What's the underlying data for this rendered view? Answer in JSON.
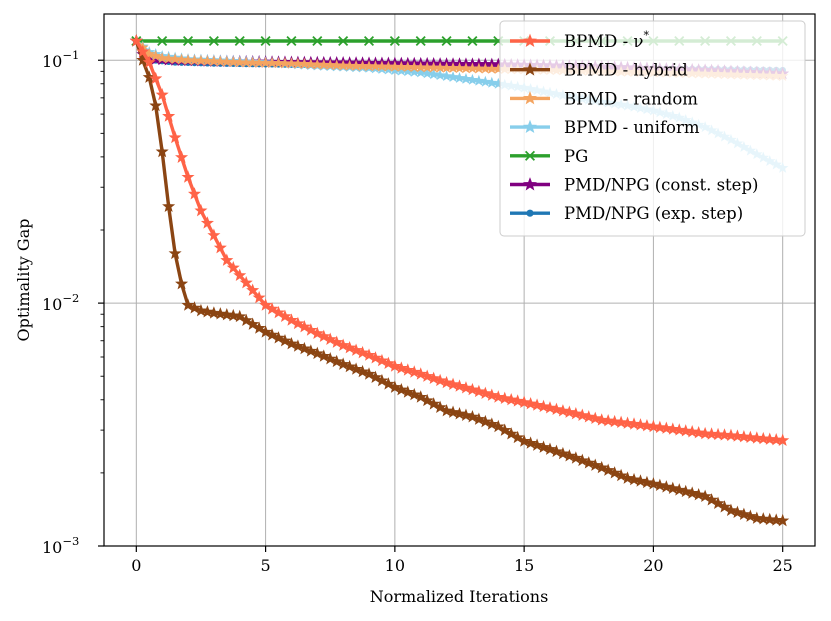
{
  "chart_data": {
    "type": "line",
    "title": "",
    "xlabel": "Normalized Iterations",
    "ylabel": "Optimality Gap",
    "xlim": [
      -1.25,
      26.25
    ],
    "ylim": [
      0.001,
      0.155
    ],
    "yscale": "log",
    "grid": true,
    "legend_position": "top-right",
    "x_ticks": [
      0,
      5,
      10,
      15,
      20,
      25
    ],
    "x_tick_labels": [
      "0",
      "5",
      "10",
      "15",
      "20",
      "25"
    ],
    "y_ticks": [
      0.1,
      0.01,
      0.001
    ],
    "y_tick_labels": [
      {
        "base": "10",
        "exp": "−1"
      },
      {
        "base": "10",
        "exp": "−2"
      },
      {
        "base": "10",
        "exp": "−3"
      }
    ],
    "series": [
      {
        "name": "PMD/NPG (exp. step)",
        "color": "#1f77b4",
        "marker": "dot",
        "points": [
          [
            0,
            0.12
          ],
          [
            0.3,
            0.102
          ],
          [
            0.7,
            0.1
          ],
          [
            1.5,
            0.098
          ],
          [
            3,
            0.097
          ],
          [
            6,
            0.096
          ],
          [
            10,
            0.095
          ],
          [
            14,
            0.094
          ],
          [
            18,
            0.093
          ],
          [
            22,
            0.092
          ],
          [
            25,
            0.091
          ]
        ]
      },
      {
        "name": "PMD/NPG (const. step)",
        "color": "#800080",
        "marker": "star",
        "points": [
          [
            0,
            0.12
          ],
          [
            0.3,
            0.103
          ],
          [
            0.7,
            0.101
          ],
          [
            1.5,
            0.1
          ],
          [
            3,
            0.099
          ],
          [
            6,
            0.098
          ],
          [
            10,
            0.097
          ],
          [
            14,
            0.096
          ],
          [
            18,
            0.094
          ],
          [
            22,
            0.091
          ],
          [
            25,
            0.088
          ]
        ]
      },
      {
        "name": "PG",
        "color": "#2ca02c",
        "marker": "x",
        "points": [
          [
            0,
            0.12
          ],
          [
            25,
            0.12
          ]
        ]
      },
      {
        "name": "BPMD - uniform",
        "color": "#87ceeb",
        "marker": "star",
        "points": [
          [
            0,
            0.12
          ],
          [
            0.5,
            0.108
          ],
          [
            1,
            0.104
          ],
          [
            2,
            0.101
          ],
          [
            3,
            0.1
          ],
          [
            5,
            0.098
          ],
          [
            7,
            0.095
          ],
          [
            9,
            0.093
          ],
          [
            11,
            0.089
          ],
          [
            13,
            0.083
          ],
          [
            15,
            0.077
          ],
          [
            17,
            0.07
          ],
          [
            19,
            0.065
          ],
          [
            20,
            0.062
          ],
          [
            21,
            0.058
          ],
          [
            22,
            0.053
          ],
          [
            23,
            0.047
          ],
          [
            24,
            0.041
          ],
          [
            25,
            0.036
          ]
        ]
      },
      {
        "name": "BPMD - random",
        "color": "#f4a460",
        "marker": "star",
        "points": [
          [
            0,
            0.12
          ],
          [
            0.5,
            0.106
          ],
          [
            1,
            0.102
          ],
          [
            2,
            0.1
          ],
          [
            4,
            0.098
          ],
          [
            6,
            0.097
          ],
          [
            8,
            0.095
          ],
          [
            10,
            0.094
          ],
          [
            12,
            0.093
          ],
          [
            14,
            0.092
          ],
          [
            16,
            0.091
          ],
          [
            18,
            0.09
          ],
          [
            20,
            0.089
          ],
          [
            22,
            0.088
          ],
          [
            25,
            0.086
          ]
        ]
      },
      {
        "name": "BPMD - hybrid",
        "color": "#8b4513",
        "marker": "star",
        "points": [
          [
            0,
            0.12
          ],
          [
            0.25,
            0.1
          ],
          [
            0.5,
            0.085
          ],
          [
            0.75,
            0.065
          ],
          [
            1,
            0.042
          ],
          [
            1.25,
            0.025
          ],
          [
            1.5,
            0.016
          ],
          [
            1.75,
            0.012
          ],
          [
            2,
            0.0098
          ],
          [
            2.5,
            0.0093
          ],
          [
            3,
            0.0091
          ],
          [
            4,
            0.0088
          ],
          [
            5,
            0.0076
          ],
          [
            6,
            0.0068
          ],
          [
            7,
            0.0062
          ],
          [
            8,
            0.0056
          ],
          [
            9,
            0.0051
          ],
          [
            10,
            0.0045
          ],
          [
            11,
            0.0041
          ],
          [
            12,
            0.0036
          ],
          [
            13,
            0.0034
          ],
          [
            14,
            0.0031
          ],
          [
            15,
            0.0027
          ],
          [
            16,
            0.0025
          ],
          [
            17,
            0.0023
          ],
          [
            18,
            0.0021
          ],
          [
            19,
            0.0019
          ],
          [
            20,
            0.0018
          ],
          [
            21,
            0.0017
          ],
          [
            22,
            0.0016
          ],
          [
            23,
            0.0014
          ],
          [
            24,
            0.0013
          ],
          [
            25,
            0.00127
          ]
        ]
      },
      {
        "name": "BPMD - ν*",
        "color": "#ff6347",
        "marker": "star",
        "points": [
          [
            0,
            0.12
          ],
          [
            0.5,
            0.098
          ],
          [
            1,
            0.072
          ],
          [
            1.5,
            0.048
          ],
          [
            2,
            0.033
          ],
          [
            2.5,
            0.024
          ],
          [
            3,
            0.019
          ],
          [
            3.5,
            0.015
          ],
          [
            4,
            0.013
          ],
          [
            5,
            0.0098
          ],
          [
            6,
            0.0085
          ],
          [
            7,
            0.0075
          ],
          [
            8,
            0.0067
          ],
          [
            9,
            0.0061
          ],
          [
            10,
            0.0055
          ],
          [
            11,
            0.0051
          ],
          [
            12,
            0.0047
          ],
          [
            13,
            0.0044
          ],
          [
            14,
            0.0041
          ],
          [
            15,
            0.0039
          ],
          [
            16,
            0.0037
          ],
          [
            17,
            0.0035
          ],
          [
            18,
            0.0033
          ],
          [
            19,
            0.0032
          ],
          [
            20,
            0.0031
          ],
          [
            21,
            0.003
          ],
          [
            22,
            0.0029
          ],
          [
            23,
            0.00285
          ],
          [
            24,
            0.00278
          ],
          [
            25,
            0.00272
          ]
        ]
      }
    ],
    "legend": [
      {
        "label": "BPMD - ν",
        "sup": "*",
        "color": "#ff6347",
        "marker": "star"
      },
      {
        "label": "BPMD - hybrid",
        "color": "#8b4513",
        "marker": "star"
      },
      {
        "label": "BPMD - random",
        "color": "#f4a460",
        "marker": "star"
      },
      {
        "label": "BPMD - uniform",
        "color": "#87ceeb",
        "marker": "star"
      },
      {
        "label": "PG",
        "color": "#2ca02c",
        "marker": "x"
      },
      {
        "label": "PMD/NPG (const. step)",
        "color": "#800080",
        "marker": "star"
      },
      {
        "label": "PMD/NPG (exp. step)",
        "color": "#1f77b4",
        "marker": "dot"
      }
    ]
  }
}
